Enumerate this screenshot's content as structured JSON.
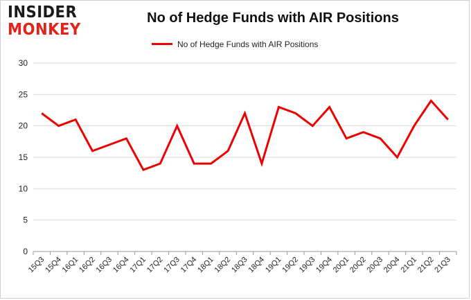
{
  "brand": {
    "line1": "INSIDER",
    "line2": "MONKEY"
  },
  "chart_data": {
    "type": "line",
    "title": "No of Hedge Funds with AIR Positions",
    "xlabel": "",
    "ylabel": "",
    "categories": [
      "15Q3",
      "15Q4",
      "16Q1",
      "16Q2",
      "16Q3",
      "16Q4",
      "17Q1",
      "17Q2",
      "17Q3",
      "17Q4",
      "18Q1",
      "18Q2",
      "18Q3",
      "18Q4",
      "19Q1",
      "19Q2",
      "19Q3",
      "19Q4",
      "20Q1",
      "20Q2",
      "20Q3",
      "20Q4",
      "21Q1",
      "21Q2",
      "21Q3"
    ],
    "series": [
      {
        "name": "No of Hedge Funds with AIR Positions",
        "color": "#ee0000",
        "values": [
          22,
          20,
          21,
          16,
          17,
          18,
          13,
          14,
          20,
          14,
          14,
          16,
          22,
          14,
          23,
          22,
          20,
          23,
          18,
          19,
          18,
          15,
          20,
          24,
          21
        ]
      }
    ],
    "ylim": [
      0,
      30
    ],
    "yticks": [
      0,
      5,
      10,
      15,
      20,
      25,
      30
    ],
    "grid": true,
    "legend_position": "top-center"
  }
}
